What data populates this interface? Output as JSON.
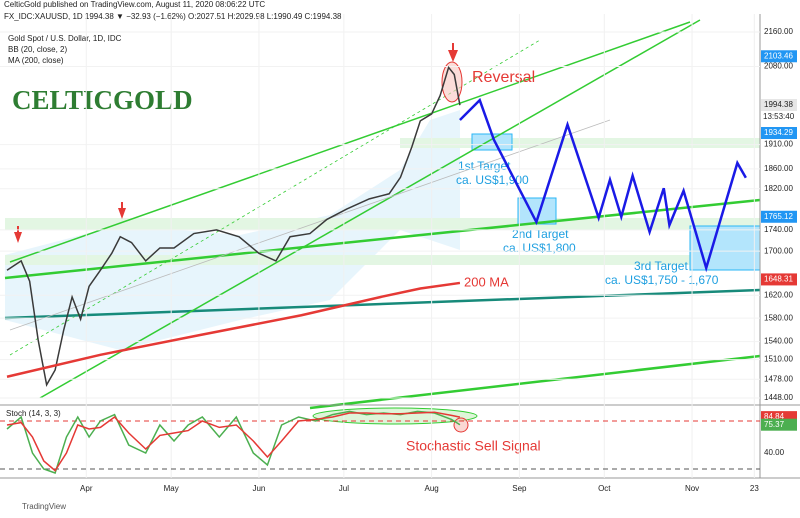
{
  "header": {
    "published": "CelticGold published on TradingView.com, August 11, 2020 08:06:22 UTC",
    "symbol_line": "FX_IDC:XAUUSD, 1D  1994.38 ▼ −32.93 (−1.62%)  O:2027.51  H:2029.98  L:1990.49  C:1994.38",
    "logo": "CELTICGOLD",
    "footer": "TradingView",
    "countdown": "13:53:40"
  },
  "chart_data": [
    {
      "type": "line",
      "title": "Gold Spot / U.S. Dollar, 1D, IDC",
      "indicator": "BB (20, close, 2)",
      "log_scale": true,
      "grid": true,
      "xlim": [
        3,
        269
      ],
      "ylim": [
        1448,
        2160
      ],
      "xticks": [
        {
          "value": 31,
          "label": "Apr"
        },
        {
          "value": 61,
          "label": "May"
        },
        {
          "value": 92,
          "label": "Jun"
        },
        {
          "value": 122,
          "label": "Jul"
        },
        {
          "value": 153,
          "label": "Aug"
        },
        {
          "value": 184,
          "label": "Sep"
        },
        {
          "value": 214,
          "label": "Oct"
        },
        {
          "value": 245,
          "label": "Nov"
        },
        {
          "value": 267,
          "label": "23"
        }
      ],
      "yticks": [
        {
          "value": 2160,
          "label": "2160.00"
        },
        {
          "value": 2080,
          "label": "2080.00"
        },
        {
          "value": 1910,
          "label": "1910.00"
        },
        {
          "value": 1860,
          "label": "1860.00"
        },
        {
          "value": 1820,
          "label": "1820.00"
        },
        {
          "value": 1740,
          "label": "1740.00"
        },
        {
          "value": 1700,
          "label": "1700.00"
        },
        {
          "value": 1620,
          "label": "1620.00"
        },
        {
          "value": 1580,
          "label": "1580.00"
        },
        {
          "value": 1540,
          "label": "1540.00"
        },
        {
          "value": 1510,
          "label": "1510.00"
        },
        {
          "value": 1478,
          "label": "1478.00"
        },
        {
          "value": 1448,
          "label": "1448.00"
        }
      ],
      "series": [
        {
          "name": "Gold Spot / U.S. Dollar, 1D, IDC",
          "color": "#3a3a3a",
          "x": [
            3,
            8,
            11,
            14,
            17,
            20,
            23,
            26,
            29,
            32,
            36,
            40,
            43,
            47,
            52,
            57,
            62,
            69,
            77,
            85,
            92,
            98,
            103,
            110,
            116,
            123,
            131,
            138,
            142,
            146,
            149,
            153,
            156,
            159,
            161,
            163
          ],
          "values": [
            1665,
            1682,
            1645,
            1543,
            1469,
            1493,
            1559,
            1617,
            1578,
            1636,
            1665,
            1696,
            1727,
            1716,
            1682,
            1706,
            1706,
            1733,
            1740,
            1727,
            1696,
            1682,
            1727,
            1733,
            1760,
            1780,
            1800,
            1810,
            1843,
            1905,
            1960,
            1975,
            2015,
            2078,
            2062,
            1994
          ]
        },
        {
          "name": "MA (200, close)",
          "color": "#e53935",
          "x": [
            3,
            36,
            71,
            107,
            135,
            149,
            163
          ],
          "values": [
            1482,
            1518,
            1551,
            1585,
            1617,
            1632,
            1642
          ]
        },
        {
          "color": "#1a1ae6",
          "x": [
            163,
            170,
            175,
            190,
            201,
            212,
            216,
            220,
            224,
            230,
            235,
            237,
            242,
            250,
            261,
            264
          ],
          "values": [
            1962,
            2005,
            1920,
            1755,
            1952,
            1763,
            1838,
            1765,
            1846,
            1736,
            1821,
            1749,
            1816,
            1669,
            1872,
            1842
          ]
        }
      ],
      "price_labels": [
        {
          "value": 2103.46,
          "color": "#2196f3"
        },
        {
          "value": 1994.38,
          "color": "#e6e6e6"
        },
        {
          "value": 1934.29,
          "color": "#2196f3"
        },
        {
          "value": 1765.12,
          "color": "#2196f3"
        },
        {
          "value": 1648.31,
          "color": "#e53935"
        }
      ],
      "annotations": [
        "Reversal",
        "1st Target",
        "ca. US$1,900",
        "2nd Target",
        "ca. US$1,800",
        "3rd Target",
        "ca. US$1,750 - 1,670",
        "200 MA"
      ]
    },
    {
      "type": "line",
      "title": "Stoch (14, 3, 3)",
      "xlim": [
        3,
        269
      ],
      "ylim": [
        0,
        100
      ],
      "yticks": [
        {
          "value": 40,
          "label": "40.00"
        }
      ],
      "levels": [
        80,
        20
      ],
      "series": [
        {
          "color": "#4caf50",
          "x": [
            3,
            8,
            12,
            16,
            20,
            24,
            28,
            32,
            36,
            41,
            46,
            52,
            57,
            62,
            67,
            72,
            78,
            84,
            90,
            95,
            100,
            106,
            112,
            118,
            124,
            130,
            136,
            142,
            148,
            154,
            160,
            163
          ],
          "values": [
            70,
            85,
            40,
            20,
            15,
            60,
            85,
            60,
            80,
            88,
            50,
            40,
            75,
            55,
            75,
            85,
            60,
            85,
            40,
            25,
            75,
            85,
            80,
            88,
            92,
            88,
            90,
            88,
            92,
            90,
            82,
            75.37
          ]
        },
        {
          "color": "#e53935",
          "x": [
            3,
            8,
            12,
            16,
            20,
            24,
            28,
            32,
            36,
            41,
            46,
            52,
            57,
            62,
            67,
            72,
            78,
            84,
            90,
            95,
            100,
            106,
            112,
            118,
            124,
            130,
            136,
            142,
            148,
            154,
            160,
            163
          ],
          "values": [
            75,
            78,
            60,
            30,
            18,
            40,
            75,
            70,
            72,
            85,
            65,
            45,
            62,
            65,
            68,
            80,
            72,
            75,
            55,
            35,
            55,
            80,
            82,
            85,
            90,
            90,
            89,
            89,
            90,
            91,
            87,
            84.84
          ]
        }
      ],
      "price_labels": [
        {
          "value": 84.84,
          "color": "#e53935"
        },
        {
          "value": 75.37,
          "color": "#4caf50"
        }
      ],
      "annotations": [
        "Stochastic Sell Signal"
      ]
    }
  ]
}
